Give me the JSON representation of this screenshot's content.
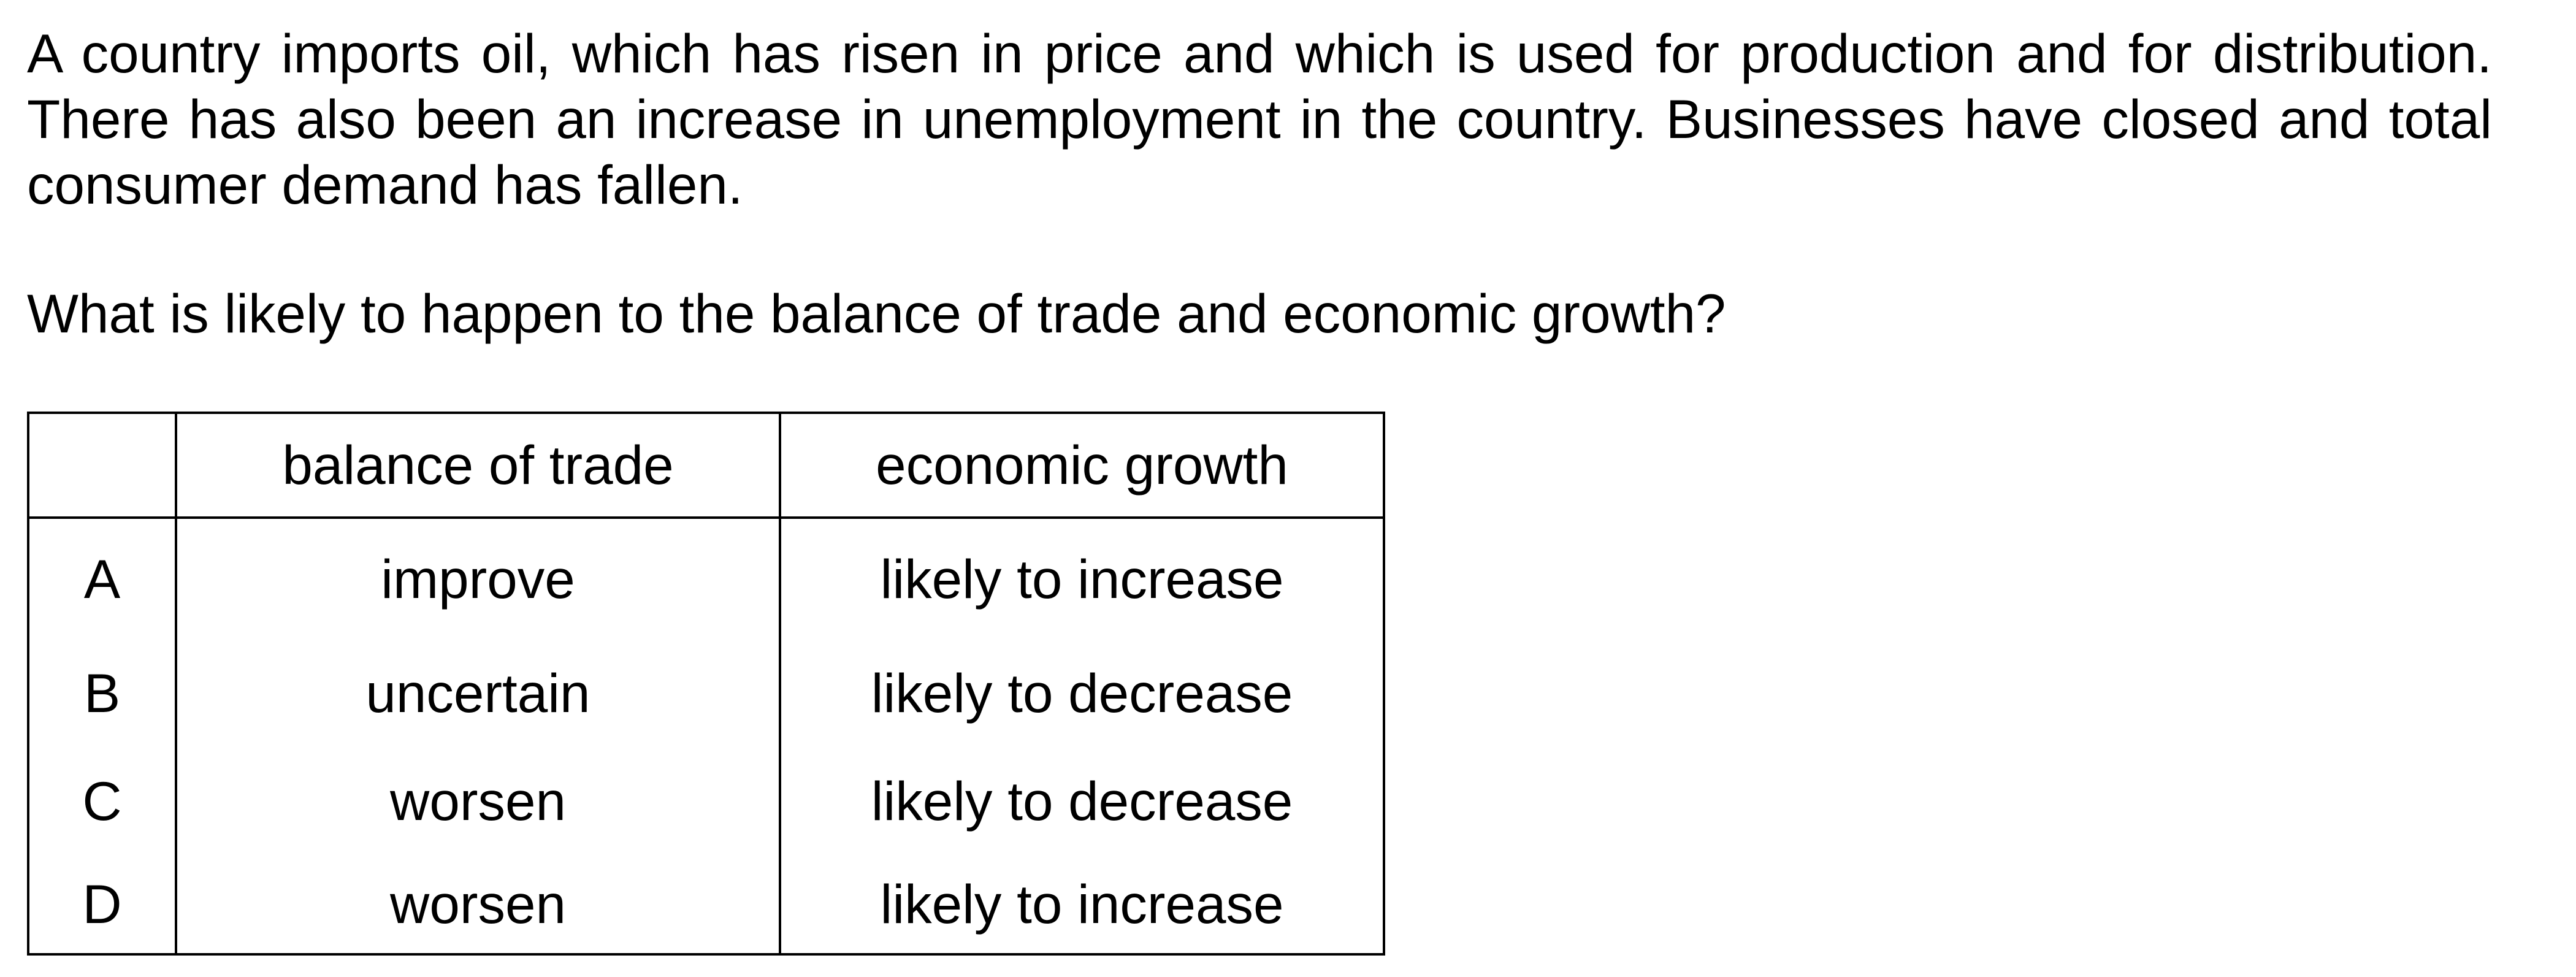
{
  "question": {
    "paragraph": "A country imports oil, which has risen in price and which is used for production and for distribution. There has also been an increase in unemployment in the country. Businesses have closed and total consumer demand has fallen.",
    "prompt": "What is likely to happen to the balance of trade and economic growth?"
  },
  "table": {
    "headers": [
      "",
      "balance of trade",
      "economic growth"
    ],
    "rows": [
      {
        "key": "A",
        "trade": "improve",
        "growth": "likely to increase"
      },
      {
        "key": "B",
        "trade": "uncertain",
        "growth": "likely to decrease"
      },
      {
        "key": "C",
        "trade": "worsen",
        "growth": "likely to decrease"
      },
      {
        "key": "D",
        "trade": "worsen",
        "growth": "likely to increase"
      }
    ]
  }
}
